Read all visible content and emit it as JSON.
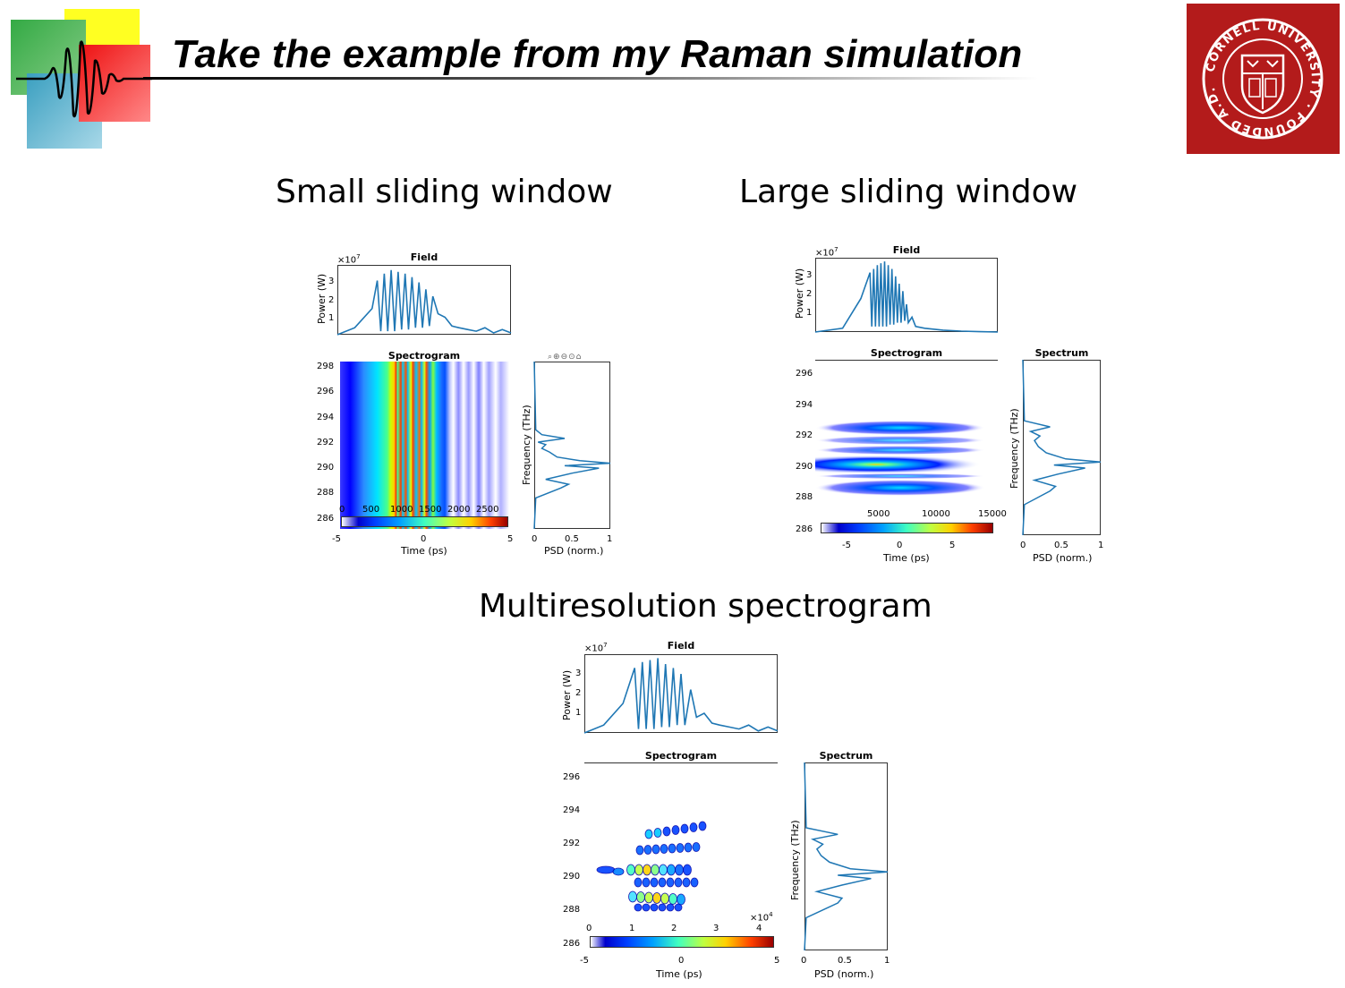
{
  "slide": {
    "title": "Take the example from my Raman simulation",
    "logo_text": "CORNELL UNIVERSITY FOUNDED A.D. 1865",
    "colors": {
      "logo_red": "#b31b1b",
      "logo_yellow": "#ffff00",
      "logo_green": "#33aa44",
      "logo_blue": "#4aa8c8",
      "logo_sq_red": "#ee1111"
    }
  },
  "sections": {
    "small": "Small sliding window",
    "large": "Large sliding window",
    "multi": "Multiresolution spectrogram"
  },
  "common": {
    "field_title": "Field",
    "spectrogram_title": "Spectrogram",
    "spectrum_title": "Spectrum",
    "power_ylabel": "Power (W)",
    "power_exp": "×10",
    "power_exp_sup": "7",
    "freq_ylabel": "Frequency (THz)",
    "time_xlabel": "Time (ps)",
    "psd_xlabel": "PSD (norm.)",
    "series_color": "#1f77b4",
    "psd_ticks": [
      "0",
      "0.5",
      "1"
    ],
    "power_ticks": [
      "1",
      "2",
      "3"
    ]
  },
  "chart_data": [
    {
      "type": "line",
      "panel": "small-field",
      "title": "Field",
      "xlim": [
        -5,
        5
      ],
      "ylim": [
        0,
        40000000.0
      ],
      "ylabel": "Power (W)",
      "y_ticks": [
        10000000.0,
        20000000.0,
        30000000.0
      ],
      "x": [
        -5,
        -4,
        -3,
        -2.7,
        -2.5,
        -2.3,
        -2.1,
        -1.9,
        -1.7,
        -1.5,
        -1.3,
        -1.1,
        -0.9,
        -0.7,
        -0.5,
        -0.3,
        -0.1,
        0.1,
        0.3,
        0.5,
        0.8,
        1.2,
        1.6,
        2.0,
        2.5,
        3.0,
        3.5,
        4.0,
        4.5,
        5
      ],
      "y": [
        0,
        4000000.0,
        15000000.0,
        31000000.0,
        2000000.0,
        35000000.0,
        2000000.0,
        37000000.0,
        2000000.0,
        36000000.0,
        3000000.0,
        35000000.0,
        3000000.0,
        33000000.0,
        4000000.0,
        30000000.0,
        4000000.0,
        26000000.0,
        5000000.0,
        22000000.0,
        12000000.0,
        10000000.0,
        5000000.0,
        4000000.0,
        3000000.0,
        2000000.0,
        4000000.0,
        1000000.0,
        3000000.0,
        1000000.0
      ]
    },
    {
      "type": "heatmap",
      "panel": "small-spectrogram",
      "title": "Spectrogram",
      "xlim": [
        -5,
        5
      ],
      "ylim": [
        285,
        298.5
      ],
      "y_ticks": [
        286,
        288,
        290,
        292,
        294,
        296,
        298
      ],
      "x_ticks": [
        -5,
        0,
        5
      ],
      "colorbar": {
        "ticks": [
          0,
          500,
          1000,
          1500,
          2000,
          2500
        ],
        "colormap": "jet"
      },
      "note_values": "vertical bands (time-localized, frequency-unresolved)"
    },
    {
      "type": "line",
      "panel": "small-spectrum",
      "title": "",
      "xlim": [
        0,
        1
      ],
      "ylim": [
        285,
        298.5
      ],
      "xlabel": "PSD (norm.)",
      "ylabel": "Frequency (THz)",
      "freq": [
        285,
        287.5,
        288.3,
        288.6,
        289,
        289.5,
        289.9,
        290.1,
        290.3,
        290.5,
        290.8,
        291.2,
        291.5,
        291.8,
        292.0,
        292.3,
        292.6,
        293,
        298.5
      ],
      "psd": [
        0,
        0.02,
        0.35,
        0.45,
        0.15,
        0.5,
        0.85,
        0.4,
        1.0,
        0.6,
        0.3,
        0.2,
        0.1,
        0.15,
        0.05,
        0.4,
        0.1,
        0.02,
        0
      ]
    },
    {
      "type": "line",
      "panel": "large-field",
      "title": "Field",
      "xlim": [
        -5,
        5
      ],
      "ylim": [
        0,
        40000000.0
      ],
      "x": [
        -5,
        -3.5,
        -2.5,
        -2.0,
        -1.9,
        -1.8,
        -1.7,
        -1.6,
        -1.5,
        -1.4,
        -1.3,
        -1.2,
        -1.1,
        -1.0,
        -0.9,
        -0.8,
        -0.7,
        -0.6,
        -0.5,
        -0.4,
        -0.3,
        -0.2,
        -0.1,
        0.0,
        0.1,
        0.3,
        0.5,
        1.0,
        2.0,
        3.0,
        4.0,
        5
      ],
      "y": [
        0,
        2000000.0,
        18000000.0,
        32000000.0,
        3000000.0,
        34000000.0,
        3000000.0,
        36000000.0,
        3000000.0,
        37000000.0,
        3000000.0,
        38000000.0,
        3000000.0,
        36000000.0,
        4000000.0,
        34000000.0,
        4000000.0,
        30000000.0,
        5000000.0,
        26000000.0,
        5000000.0,
        22000000.0,
        6000000.0,
        15000000.0,
        5000000.0,
        8000000.0,
        3000000.0,
        2000000.0,
        1000000.0,
        500000.0,
        200000.0,
        0
      ]
    },
    {
      "type": "heatmap",
      "panel": "large-spectrogram",
      "title": "Spectrogram",
      "xlim": [
        -8,
        10
      ],
      "ylim": [
        285.5,
        297
      ],
      "y_ticks": [
        286,
        288,
        290,
        292,
        294,
        296
      ],
      "x_ticks": [
        -5,
        0,
        5
      ],
      "colorbar": {
        "ticks": [
          5000,
          10000,
          15000
        ],
        "colormap": "jet"
      },
      "bands_thz": [
        292.5,
        291.8,
        290.3,
        289.5,
        288.6
      ]
    },
    {
      "type": "line",
      "panel": "large-spectrum",
      "title": "Spectrum",
      "xlim": [
        0,
        1
      ],
      "ylim": [
        285.5,
        297
      ],
      "freq": [
        285.5,
        287.5,
        288.4,
        288.7,
        289.1,
        289.5,
        289.9,
        290.1,
        290.3,
        290.5,
        290.9,
        291.3,
        291.7,
        292.0,
        292.3,
        292.6,
        293,
        297
      ],
      "psd": [
        0,
        0.02,
        0.35,
        0.42,
        0.15,
        0.45,
        0.8,
        0.4,
        1.0,
        0.55,
        0.3,
        0.2,
        0.15,
        0.22,
        0.1,
        0.35,
        0.02,
        0
      ]
    },
    {
      "type": "line",
      "panel": "multi-field",
      "title": "Field",
      "xlim": [
        -5,
        5
      ],
      "ylim": [
        0,
        40000000.0
      ],
      "x": [
        -5,
        -4,
        -3,
        -2.4,
        -2.2,
        -2.0,
        -1.8,
        -1.6,
        -1.4,
        -1.2,
        -1.0,
        -0.8,
        -0.6,
        -0.4,
        -0.2,
        0.0,
        0.2,
        0.5,
        0.8,
        1.2,
        1.6,
        2.0,
        2.5,
        3.0,
        3.5,
        4.0,
        4.5,
        5
      ],
      "y": [
        0,
        4000000.0,
        15000000.0,
        33000000.0,
        2000000.0,
        36000000.0,
        2000000.0,
        37000000.0,
        2000000.0,
        38000000.0,
        3000000.0,
        35000000.0,
        3000000.0,
        33000000.0,
        4000000.0,
        30000000.0,
        4000000.0,
        22000000.0,
        8000000.0,
        10000000.0,
        5000000.0,
        4000000.0,
        3000000.0,
        2000000.0,
        4000000.0,
        1000000.0,
        3000000.0,
        1000000.0
      ]
    },
    {
      "type": "heatmap",
      "panel": "multi-spectrogram",
      "title": "Spectrogram",
      "xlim": [
        -5,
        5
      ],
      "ylim": [
        285.5,
        297
      ],
      "y_ticks": [
        286,
        288,
        290,
        292,
        294,
        296
      ],
      "x_ticks": [
        -5,
        0,
        5
      ],
      "colorbar": {
        "ticks": [
          "0",
          "1",
          "2",
          "3",
          "4"
        ],
        "exponent": "×10",
        "exponent_sup": "4",
        "colormap": "jet"
      }
    },
    {
      "type": "line",
      "panel": "multi-spectrum",
      "title": "Spectrum",
      "xlim": [
        0,
        1
      ],
      "ylim": [
        285.5,
        297
      ],
      "freq": [
        285.5,
        287.5,
        288.4,
        288.7,
        289.1,
        289.5,
        289.9,
        290.1,
        290.3,
        290.5,
        290.9,
        291.3,
        291.7,
        292.0,
        292.3,
        292.6,
        293,
        297
      ],
      "psd": [
        0,
        0.02,
        0.4,
        0.45,
        0.15,
        0.45,
        0.8,
        0.4,
        1.0,
        0.55,
        0.3,
        0.2,
        0.15,
        0.22,
        0.1,
        0.4,
        0.02,
        0
      ]
    }
  ]
}
